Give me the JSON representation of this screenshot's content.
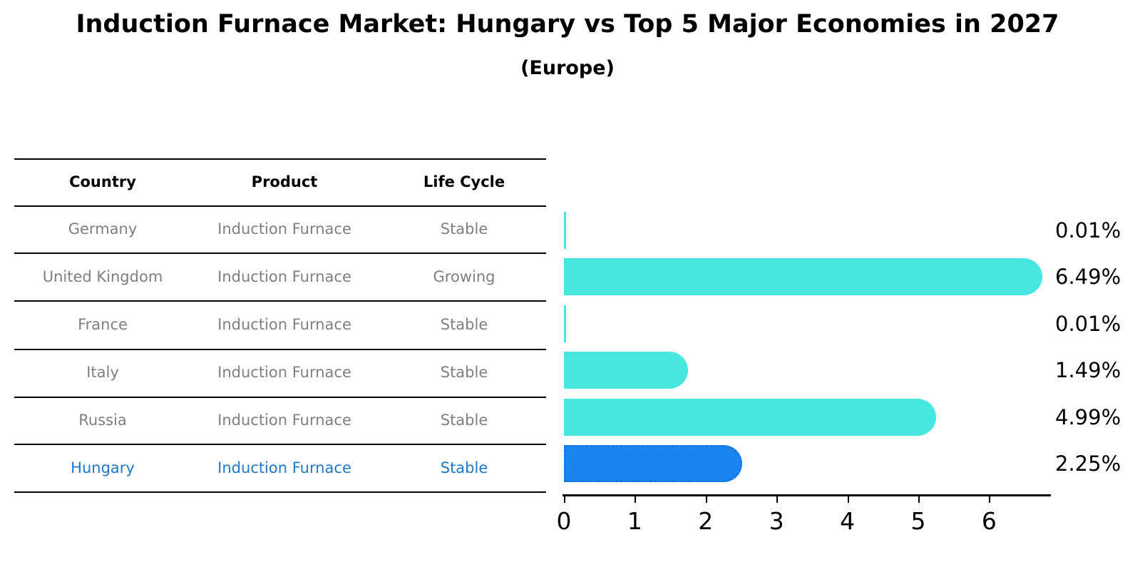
{
  "title": "Induction Furnace Market: Hungary vs Top 5 Major Economies in 2027",
  "subtitle": "(Europe)",
  "table": {
    "headers": [
      {
        "key": "country",
        "label": "Country"
      },
      {
        "key": "product",
        "label": "Product"
      },
      {
        "key": "life_cycle",
        "label": "Life Cycle"
      }
    ],
    "rows": [
      {
        "country": "Germany",
        "product": "Induction Furnace",
        "life_cycle": "Stable",
        "highlight": false
      },
      {
        "country": "United Kingdom",
        "product": "Induction Furnace",
        "life_cycle": "Growing",
        "highlight": false
      },
      {
        "country": "France",
        "product": "Induction Furnace",
        "life_cycle": "Stable",
        "highlight": false
      },
      {
        "country": "Italy",
        "product": "Induction Furnace",
        "life_cycle": "Stable",
        "highlight": false
      },
      {
        "country": "Russia",
        "product": "Induction Furnace",
        "life_cycle": "Stable",
        "highlight": false
      },
      {
        "country": "Hungary",
        "product": "Induction Furnace",
        "life_cycle": "Stable",
        "highlight": true
      }
    ]
  },
  "chart_data": {
    "type": "bar",
    "orientation": "horizontal",
    "title": "Induction Furnace Market: Hungary vs Top 5 Major Economies in 2027",
    "subtitle": "(Europe)",
    "categories": [
      "Germany",
      "United Kingdom",
      "France",
      "Italy",
      "Russia",
      "Hungary"
    ],
    "values": [
      0.01,
      6.49,
      0.01,
      1.49,
      4.99,
      2.25
    ],
    "value_labels": [
      "0.01%",
      "6.49%",
      "0.01%",
      "1.49%",
      "4.99%",
      "2.25%"
    ],
    "highlight_index": 5,
    "x_ticks": [
      "0",
      "1",
      "2",
      "3",
      "4",
      "5",
      "6"
    ],
    "xlim": [
      0,
      6.9
    ],
    "grid": false,
    "legend": "none",
    "bar_color": "#48e6e0",
    "highlight_bar_color": "#1a84f0",
    "highlight_text_color": "#1f78c8",
    "row_text_color": "#7f7f7f",
    "axis_color": "#000000"
  }
}
